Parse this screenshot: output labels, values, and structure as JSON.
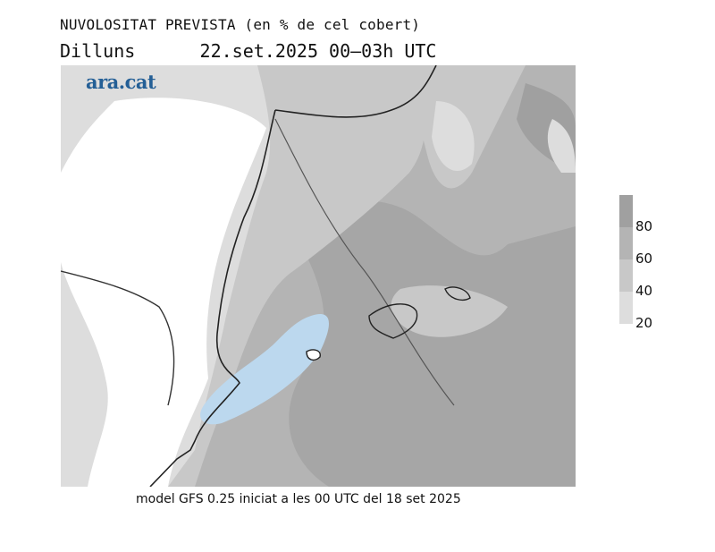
{
  "header": {
    "title": "NUVOLOSITAT PREVISTA (en % de cel cobert)",
    "day": "Dilluns",
    "datetime": "22.set.2025 00–03h UTC"
  },
  "logo": {
    "text": "ara.cat",
    "color": "#245f96"
  },
  "legend": {
    "levels": [
      {
        "label": "80",
        "color": "#a0a0a0"
      },
      {
        "label": "60",
        "color": "#b4b4b4"
      },
      {
        "label": "40",
        "color": "#c8c8c8"
      },
      {
        "label": "20",
        "color": "#dddddd"
      }
    ],
    "clear_color": "#ffffff",
    "highlight_color": "#bcd8ee"
  },
  "footer": {
    "caption": "model GFS 0.25 iniciat a les 00 UTC del 18 set 2025"
  }
}
